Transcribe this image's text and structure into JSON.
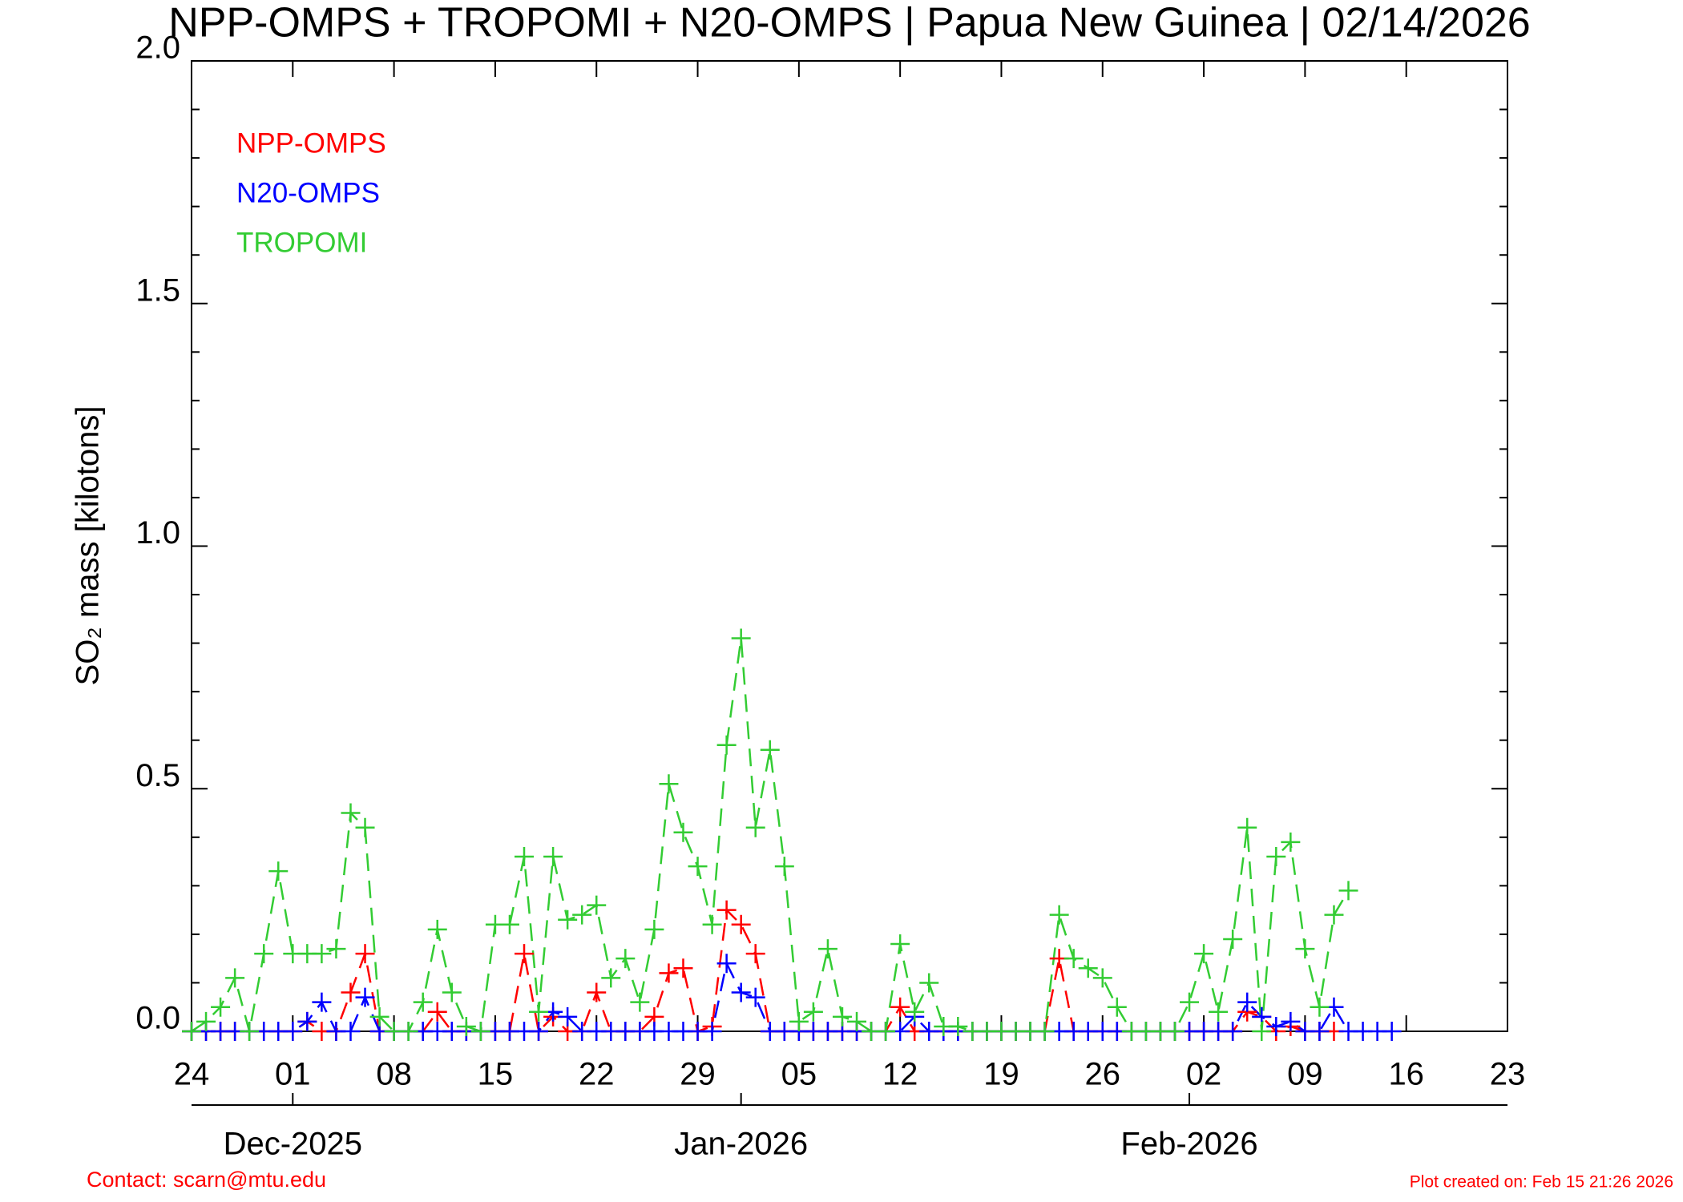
{
  "chart_data": {
    "type": "line",
    "title": "NPP-OMPS + TROPOMI + N20-OMPS | Papua New Guinea | 02/14/2026",
    "y_label": "SO₂ mass [kilotons]",
    "x": [
      "2025-11-24",
      "2025-11-25",
      "2025-11-26",
      "2025-11-27",
      "2025-11-28",
      "2025-11-29",
      "2025-11-30",
      "2025-12-01",
      "2025-12-02",
      "2025-12-03",
      "2025-12-04",
      "2025-12-05",
      "2025-12-06",
      "2025-12-07",
      "2025-12-08",
      "2025-12-09",
      "2025-12-10",
      "2025-12-11",
      "2025-12-12",
      "2025-12-13",
      "2025-12-14",
      "2025-12-15",
      "2025-12-16",
      "2025-12-17",
      "2025-12-18",
      "2025-12-19",
      "2025-12-20",
      "2025-12-21",
      "2025-12-22",
      "2025-12-23",
      "2025-12-24",
      "2025-12-25",
      "2025-12-26",
      "2025-12-27",
      "2025-12-28",
      "2025-12-29",
      "2025-12-30",
      "2025-12-31",
      "2026-01-01",
      "2026-01-02",
      "2026-01-03",
      "2026-01-04",
      "2026-01-05",
      "2026-01-06",
      "2026-01-07",
      "2026-01-08",
      "2026-01-09",
      "2026-01-10",
      "2026-01-11",
      "2026-01-12",
      "2026-01-13",
      "2026-01-14",
      "2026-01-15",
      "2026-01-16",
      "2026-01-17",
      "2026-01-18",
      "2026-01-19",
      "2026-01-20",
      "2026-01-21",
      "2026-01-22",
      "2026-01-23",
      "2026-01-24",
      "2026-01-25",
      "2026-01-26",
      "2026-01-27",
      "2026-01-28",
      "2026-01-29",
      "2026-01-30",
      "2026-01-31",
      "2026-02-01",
      "2026-02-02",
      "2026-02-03",
      "2026-02-04",
      "2026-02-05",
      "2026-02-06",
      "2026-02-07",
      "2026-02-08",
      "2026-02-09",
      "2026-02-10",
      "2026-02-11",
      "2026-02-12",
      "2026-02-13",
      "2026-02-14",
      "2026-02-15"
    ],
    "series": [
      {
        "name": "NPP-OMPS",
        "color": "#ff0000",
        "values": [
          0,
          0,
          0,
          0,
          0,
          0,
          0,
          0,
          0.02,
          0,
          0,
          0.08,
          0.16,
          0,
          0,
          0,
          0,
          0.04,
          0,
          0,
          0,
          0,
          0,
          0.16,
          0,
          0.03,
          0,
          0,
          0.08,
          0,
          0,
          0,
          0.03,
          0.12,
          0.13,
          0,
          0.01,
          0.25,
          0.22,
          0.16,
          0,
          0,
          0,
          0,
          0,
          0,
          0,
          0,
          0,
          0.05,
          0,
          0,
          0,
          0,
          0,
          0,
          0,
          0,
          0,
          0,
          0.15,
          0,
          0,
          0,
          0,
          0,
          0,
          0,
          0,
          0,
          0,
          0,
          0,
          0.04,
          0.03,
          0,
          0.01,
          0,
          0,
          0,
          null,
          null,
          null,
          null
        ]
      },
      {
        "name": "N20-OMPS",
        "color": "#0000ff",
        "values": [
          0,
          0,
          0,
          0,
          0,
          0,
          0,
          0,
          0.02,
          0.06,
          0,
          0,
          0.07,
          0,
          0,
          0,
          0,
          0,
          0,
          0,
          0,
          0,
          0,
          0,
          0,
          0.04,
          0.03,
          0,
          0,
          0,
          0,
          0,
          0,
          0,
          0,
          0,
          0,
          0.14,
          0.08,
          0.07,
          0,
          0,
          0,
          0,
          0,
          0,
          0,
          0,
          0,
          0,
          0.03,
          0,
          0,
          0,
          0,
          0,
          0,
          0,
          0,
          0,
          0,
          0,
          0,
          0,
          0,
          0,
          0,
          0,
          0,
          0,
          0,
          0,
          0,
          0.06,
          0.03,
          0.01,
          0.02,
          0,
          0,
          0.05,
          0,
          0,
          0,
          0
        ]
      },
      {
        "name": "TROPOMI",
        "color": "#33cc33",
        "values": [
          0,
          0.02,
          0.05,
          0.11,
          0,
          0.16,
          0.33,
          0.16,
          0.16,
          0.16,
          0.17,
          0.45,
          0.42,
          0.03,
          0,
          0,
          0.06,
          0.21,
          0.08,
          0.01,
          0,
          0.22,
          0.22,
          0.36,
          0.04,
          0.36,
          0.23,
          0.24,
          0.26,
          0.11,
          0.15,
          0.06,
          0.21,
          0.51,
          0.41,
          0.34,
          0.22,
          0.59,
          0.81,
          0.42,
          0.58,
          0.34,
          0.02,
          0.04,
          0.17,
          0.03,
          0.02,
          0,
          0,
          0.18,
          0.04,
          0.1,
          0.01,
          0.01,
          0,
          0,
          0,
          0,
          0,
          0,
          0.24,
          0.15,
          0.13,
          0.11,
          0.05,
          0,
          0,
          0,
          0,
          0.06,
          0.16,
          0.04,
          0.19,
          0.42,
          0,
          0.36,
          0.39,
          0.17,
          0.05,
          0.24,
          0.29,
          null,
          null,
          null
        ]
      }
    ],
    "xlim": [
      "2025-11-24",
      "2026-02-23"
    ],
    "xticks": [
      {
        "value": "2025-11-24",
        "label": "24"
      },
      {
        "value": "2025-12-01",
        "label": "01"
      },
      {
        "value": "2025-12-08",
        "label": "08"
      },
      {
        "value": "2025-12-15",
        "label": "15"
      },
      {
        "value": "2025-12-22",
        "label": "22"
      },
      {
        "value": "2025-12-29",
        "label": "29"
      },
      {
        "value": "2026-01-05",
        "label": "05"
      },
      {
        "value": "2026-01-12",
        "label": "12"
      },
      {
        "value": "2026-01-19",
        "label": "19"
      },
      {
        "value": "2026-01-26",
        "label": "26"
      },
      {
        "value": "2026-02-02",
        "label": "02"
      },
      {
        "value": "2026-02-09",
        "label": "09"
      },
      {
        "value": "2026-02-16",
        "label": "16"
      },
      {
        "value": "2026-02-23",
        "label": "23"
      }
    ],
    "month_ticks": [
      {
        "value": "2025-12-01",
        "label": "Dec-2025"
      },
      {
        "value": "2026-01-01",
        "label": "Jan-2026"
      },
      {
        "value": "2026-02-01",
        "label": "Feb-2026"
      }
    ],
    "ylim": [
      0,
      2
    ],
    "yticks": [
      {
        "value": 0,
        "label": "0.0"
      },
      {
        "value": 0.5,
        "label": "0.5"
      },
      {
        "value": 1,
        "label": "1.0"
      },
      {
        "value": 1.5,
        "label": "1.5"
      },
      {
        "value": 2,
        "label": "2.0"
      }
    ],
    "contact": "Contact: scarn@mtu.edu",
    "created": "Plot created on: Feb 15 21:26 2026"
  }
}
